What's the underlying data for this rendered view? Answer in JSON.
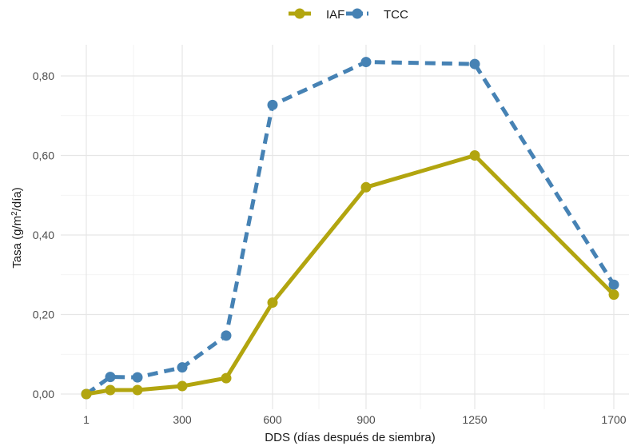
{
  "chart_data": {
    "type": "line",
    "x_categories": [
      "1",
      "",
      "",
      "300",
      "",
      "600",
      "900",
      "1250",
      "1700"
    ],
    "x_tick_labels": [
      "1",
      "300",
      "600",
      "900",
      "1250",
      "1700"
    ],
    "xlabel": "DDS (días después de siembra)",
    "ylabel": {
      "prefix": "Tasa (g/m",
      "superscript": "2",
      "suffix": "/día)"
    },
    "ylim": [
      0,
      0.85
    ],
    "y_ticks": [
      0,
      0.2,
      0.4,
      0.6,
      0.8
    ],
    "y_tick_labels": [
      "0,00",
      "0,20",
      "0,40",
      "0,60",
      "0,80"
    ],
    "grid": true,
    "legend_position": "top",
    "series": [
      {
        "name": "IAF",
        "color": "#b2a50f",
        "line_style": "solid",
        "x_index": [
          0,
          1,
          2,
          3,
          4,
          5,
          6,
          7,
          8
        ],
        "values": [
          0.0,
          0.01,
          0.01,
          0.02,
          0.04,
          0.23,
          0.52,
          0.6,
          0.25
        ]
      },
      {
        "name": "TCC",
        "color": "#4682b4",
        "line_style": "dashed",
        "x_index": [
          0,
          1,
          2,
          3,
          4,
          5,
          6,
          7,
          8
        ],
        "values": [
          0.0,
          0.043,
          0.042,
          0.067,
          0.147,
          0.727,
          0.835,
          0.83,
          0.275
        ]
      }
    ]
  }
}
